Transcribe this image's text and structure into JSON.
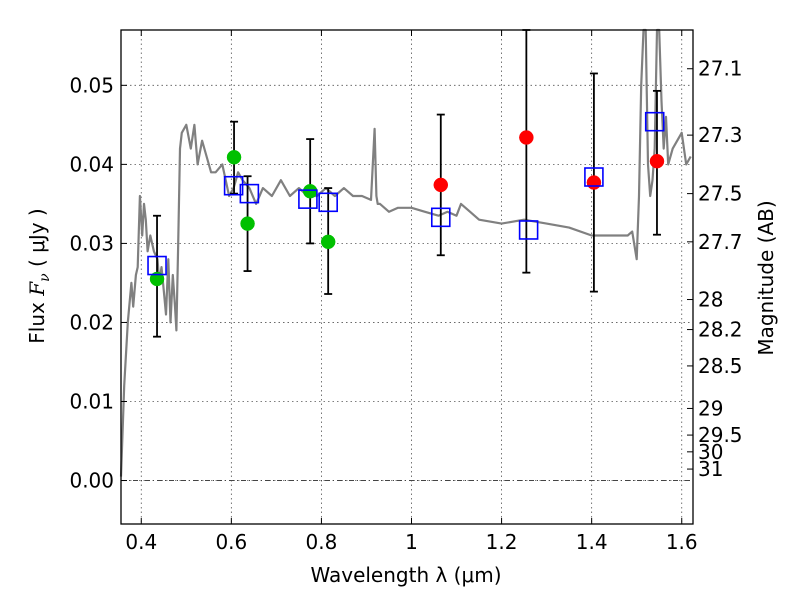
{
  "chart_data": {
    "type": "scatter",
    "xlabel": "Wavelength  λ (μm)",
    "ylabel": {
      "prefix": "Flux ",
      "var": "F",
      "sub": "ν",
      "unit": " ( μJy )"
    },
    "y2label": "Magnitude (AB)",
    "xlim": [
      0.355,
      1.625
    ],
    "ylim": [
      -0.0055,
      0.057
    ],
    "xticks": [
      0.4,
      0.6,
      0.8,
      1.0,
      1.2,
      1.4,
      1.6
    ],
    "xtick_labels": [
      "0.4",
      "0.6",
      "0.8",
      "1",
      "1.2",
      "1.4",
      "1.6"
    ],
    "yticks": [
      0.0,
      0.01,
      0.02,
      0.03,
      0.04,
      0.05
    ],
    "ytick_labels": [
      "0.00",
      "0.01",
      "0.02",
      "0.03",
      "0.04",
      "0.05"
    ],
    "mag_ticks": [
      {
        "label": "27.1",
        "y": 0.0521
      },
      {
        "label": "27.3",
        "y": 0.0437
      },
      {
        "label": "27.5",
        "y": 0.0363
      },
      {
        "label": "27.7",
        "y": 0.0302
      },
      {
        "label": "28",
        "y": 0.0229
      },
      {
        "label": "28.2",
        "y": 0.0191
      },
      {
        "label": "28.5",
        "y": 0.0145
      },
      {
        "label": "29",
        "y": 0.00912
      },
      {
        "label": "29.5",
        "y": 0.00575
      },
      {
        "label": "30",
        "y": 0.00363
      },
      {
        "label": "31",
        "y": 0.00145
      }
    ],
    "grid": true,
    "colors": {
      "model": "#808080",
      "observed_green": "#00c000",
      "observed_red": "#ff0000",
      "model_box": "#0000ff",
      "errorbar": "#000000"
    },
    "model_sed": {
      "x": [
        0.355,
        0.362,
        0.37,
        0.378,
        0.382,
        0.388,
        0.392,
        0.397,
        0.402,
        0.406,
        0.41,
        0.414,
        0.42,
        0.428,
        0.436,
        0.44,
        0.445,
        0.45,
        0.455,
        0.46,
        0.465,
        0.47,
        0.475,
        0.478,
        0.482,
        0.486,
        0.49,
        0.5,
        0.51,
        0.518,
        0.525,
        0.535,
        0.545,
        0.555,
        0.565,
        0.58,
        0.595,
        0.605,
        0.615,
        0.625,
        0.64,
        0.655,
        0.67,
        0.69,
        0.71,
        0.73,
        0.75,
        0.77,
        0.79,
        0.81,
        0.83,
        0.85,
        0.87,
        0.89,
        0.91,
        0.918,
        0.922,
        0.925,
        0.93,
        0.95,
        0.97,
        1.0,
        1.03,
        1.06,
        1.08,
        1.1,
        1.11,
        1.13,
        1.15,
        1.2,
        1.25,
        1.3,
        1.35,
        1.4,
        1.45,
        1.48,
        1.49,
        1.5,
        1.505,
        1.51,
        1.515,
        1.52,
        1.525,
        1.53,
        1.535,
        1.54,
        1.545,
        1.55,
        1.555,
        1.56,
        1.565,
        1.57,
        1.58,
        1.59,
        1.6,
        1.61,
        1.62
      ],
      "y": [
        0.0005,
        0.012,
        0.02,
        0.025,
        0.022,
        0.026,
        0.027,
        0.036,
        0.031,
        0.035,
        0.033,
        0.029,
        0.031,
        0.029,
        0.028,
        0.025,
        0.027,
        0.024,
        0.021,
        0.028,
        0.02,
        0.026,
        0.022,
        0.019,
        0.03,
        0.042,
        0.044,
        0.045,
        0.042,
        0.045,
        0.04,
        0.043,
        0.041,
        0.039,
        0.039,
        0.04,
        0.036,
        0.037,
        0.039,
        0.038,
        0.037,
        0.035,
        0.037,
        0.036,
        0.038,
        0.036,
        0.037,
        0.036,
        0.036,
        0.037,
        0.036,
        0.037,
        0.036,
        0.036,
        0.0355,
        0.0445,
        0.036,
        0.035,
        0.035,
        0.034,
        0.0345,
        0.0345,
        0.034,
        0.0335,
        0.034,
        0.0335,
        0.035,
        0.034,
        0.033,
        0.0325,
        0.033,
        0.0325,
        0.032,
        0.031,
        0.031,
        0.031,
        0.0315,
        0.028,
        0.036,
        0.05,
        0.06,
        0.06,
        0.04,
        0.036,
        0.038,
        0.042,
        0.06,
        0.06,
        0.048,
        0.042,
        0.046,
        0.04,
        0.042,
        0.043,
        0.044,
        0.04,
        0.041
      ]
    },
    "observations": [
      {
        "x": 0.435,
        "y": 0.0255,
        "err_lo": 0.0182,
        "err_hi": 0.0335,
        "color": "green"
      },
      {
        "x": 0.606,
        "y": 0.0409,
        "err_lo": 0.0363,
        "err_hi": 0.0454,
        "color": "green"
      },
      {
        "x": 0.636,
        "y": 0.0325,
        "err_lo": 0.0265,
        "err_hi": 0.0385,
        "color": "green"
      },
      {
        "x": 0.775,
        "y": 0.0366,
        "err_lo": 0.03,
        "err_hi": 0.0432,
        "color": "green"
      },
      {
        "x": 0.815,
        "y": 0.0302,
        "err_lo": 0.0236,
        "err_hi": 0.037,
        "color": "green"
      },
      {
        "x": 1.065,
        "y": 0.0374,
        "err_lo": 0.0285,
        "err_hi": 0.0463,
        "color": "red"
      },
      {
        "x": 1.255,
        "y": 0.0434,
        "err_lo": 0.0263,
        "err_hi": 0.057,
        "color": "red"
      },
      {
        "x": 1.405,
        "y": 0.0377,
        "err_lo": 0.0239,
        "err_hi": 0.0515,
        "color": "red"
      },
      {
        "x": 1.545,
        "y": 0.0404,
        "err_lo": 0.0311,
        "err_hi": 0.0493,
        "color": "red"
      }
    ],
    "model_boxes": [
      {
        "x": 0.435,
        "y": 0.0272
      },
      {
        "x": 0.605,
        "y": 0.0373
      },
      {
        "x": 0.64,
        "y": 0.0363
      },
      {
        "x": 0.77,
        "y": 0.0356
      },
      {
        "x": 0.815,
        "y": 0.0352
      },
      {
        "x": 1.065,
        "y": 0.0333
      },
      {
        "x": 1.26,
        "y": 0.0317
      },
      {
        "x": 1.405,
        "y": 0.0384
      },
      {
        "x": 1.54,
        "y": 0.0454
      }
    ]
  }
}
